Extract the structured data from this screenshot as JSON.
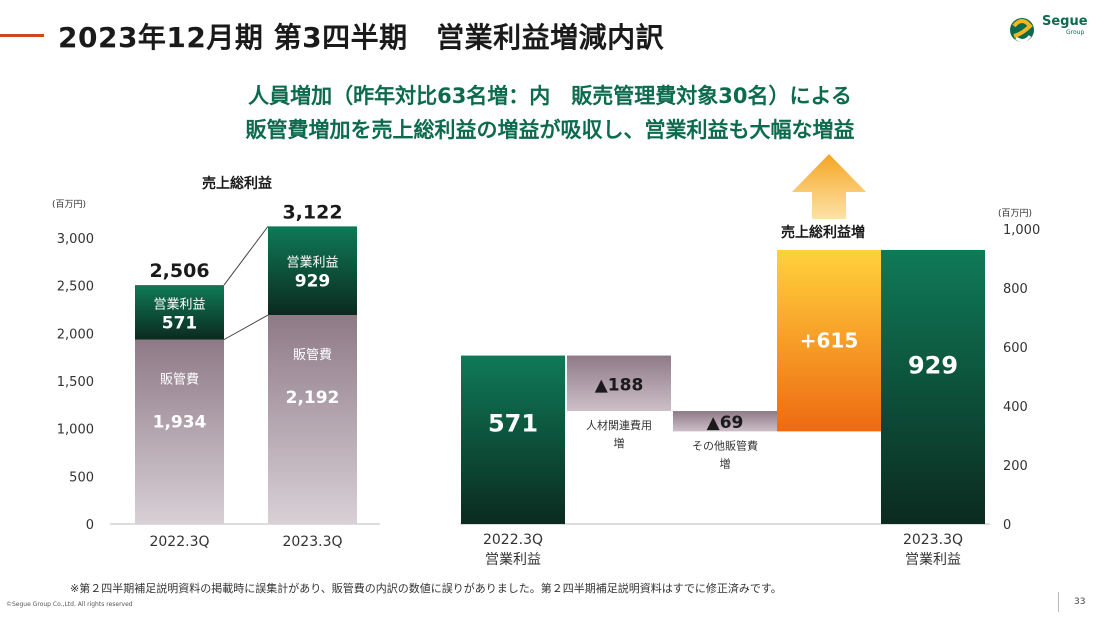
{
  "header": {
    "title": "2023年12月期 第3四半期　営業利益増減内訳",
    "logo_text": "Segue",
    "logo_sub": "Group"
  },
  "subtitle": {
    "line1": "人員増加（昨年対比63名増：内　販売管理費対象30名）による",
    "line2": "販管費増加を売上総利益の増益が吸収し、営業利益も大幅な増益"
  },
  "colors": {
    "green": "#0d6b4d",
    "purple": "#9b8a94",
    "orange": "#f39a1c",
    "accent": "#d0461e"
  },
  "chart_data": [
    {
      "type": "bar",
      "title": "売上総利益",
      "unit": "(百万円)",
      "stacked": true,
      "categories": [
        "2022.3Q",
        "2023.3Q"
      ],
      "series": [
        {
          "name": "販管費",
          "values": [
            1934,
            2192
          ]
        },
        {
          "name": "営業利益",
          "values": [
            571,
            929
          ]
        }
      ],
      "totals": [
        2506,
        3122
      ],
      "ylim": [
        0,
        3000
      ],
      "yticks": [
        0,
        500,
        1000,
        1500,
        2000,
        2500,
        3000
      ],
      "ytick_labels": [
        "0",
        "500",
        "1,000",
        "1,500",
        "2,000",
        "2,500",
        "3,000"
      ],
      "value_labels": {
        "totals": [
          "2,506",
          "3,122"
        ],
        "sga": [
          "1,934",
          "2,192"
        ],
        "op": [
          "571",
          "929"
        ]
      }
    },
    {
      "type": "bar",
      "subtype": "waterfall",
      "unit": "(百万円)",
      "ylim": [
        0,
        1000
      ],
      "yticks": [
        0,
        200,
        400,
        600,
        800,
        1000
      ],
      "ytick_labels": [
        "0",
        "200",
        "400",
        "600",
        "800",
        "1,000"
      ],
      "steps": [
        {
          "label": "2022.3Q\n営業利益",
          "value": 571,
          "kind": "total",
          "display": "571"
        },
        {
          "label": "人材関連費用\n増",
          "value": -188,
          "kind": "decrease",
          "display": "▲188"
        },
        {
          "label": "その他販管費\n増",
          "value": -69,
          "kind": "decrease",
          "display": "▲69"
        },
        {
          "label": "売上総利益増",
          "value": 615,
          "kind": "increase",
          "display": "+615"
        },
        {
          "label": "2023.3Q\n営業利益",
          "value": 929,
          "kind": "total",
          "display": "929"
        }
      ]
    }
  ],
  "footer": {
    "note": "※第２四半期補足説明資料の掲載時に誤集計があり、販管費の内訳の数値に誤りがありました。第２四半期補足説明資料はすでに修正済みです。",
    "copyright": "©Segue Group Co.,Ltd. All rights reserved",
    "page": "33"
  }
}
